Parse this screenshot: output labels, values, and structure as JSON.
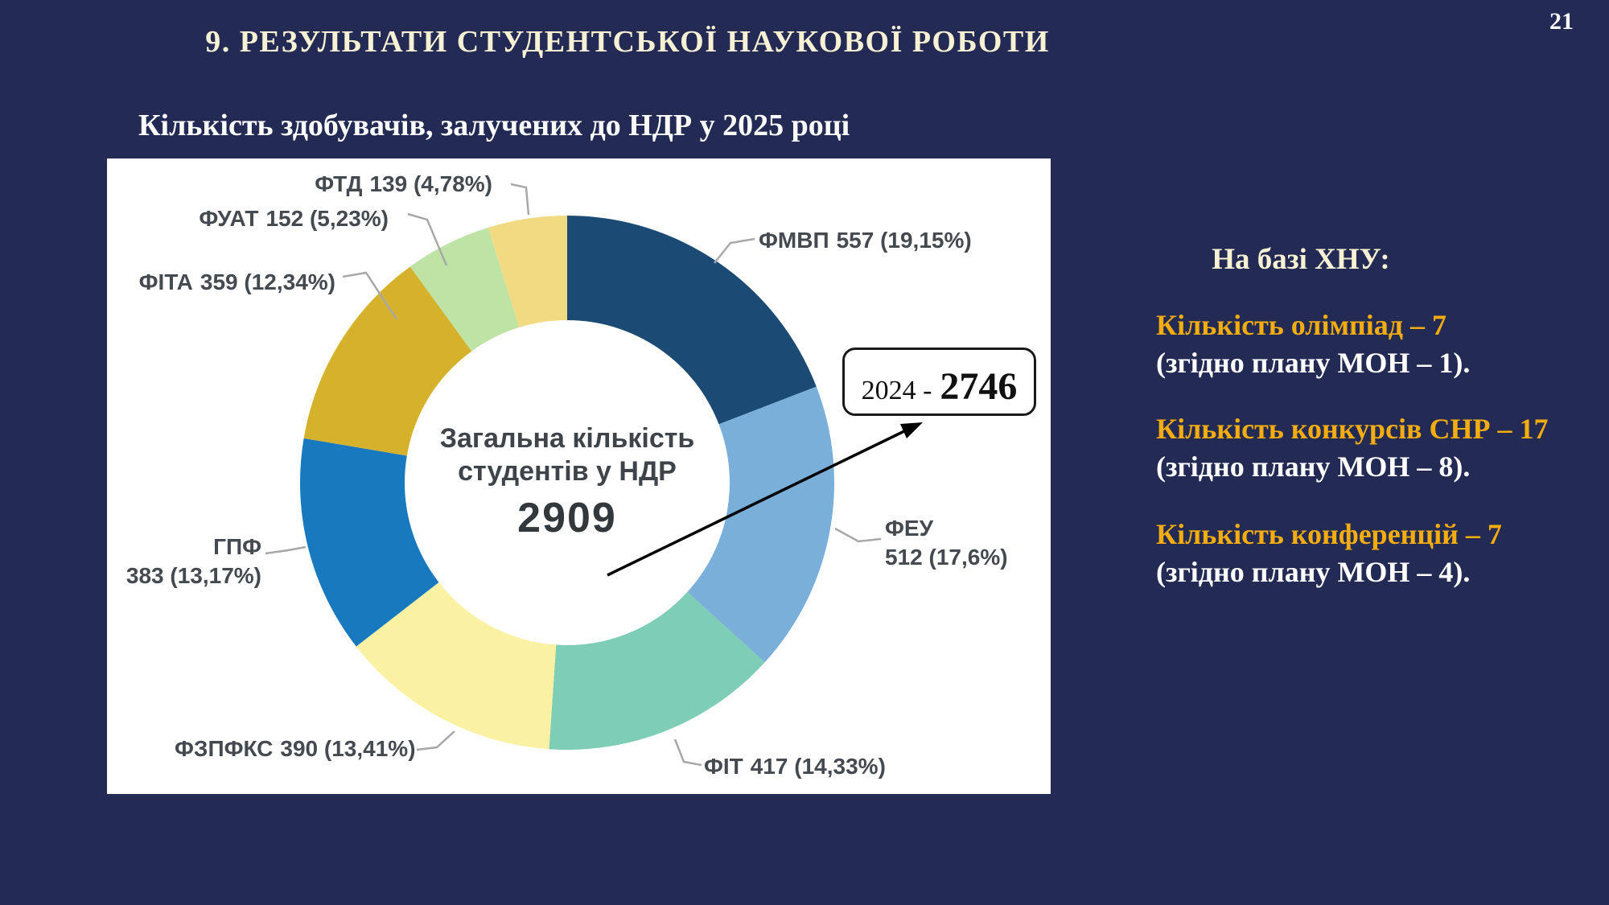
{
  "slide": {
    "page_number": "21",
    "title": "9. РЕЗУЛЬТАТИ СТУДЕНТСЬКОЇ НАУКОВОЇ РОБОТИ",
    "subtitle": "Кількість здобувачів, залучених до НДР у 2025 році"
  },
  "chart_data": {
    "type": "pie",
    "subtype": "donut",
    "title": "Кількість здобувачів, залучених до НДР у 2025 році",
    "total": 2909,
    "start_angle_deg": -90,
    "direction": "clockwise",
    "center_label": {
      "line1": "Загальна кількість",
      "line2": "студентів у НДР",
      "total": "2909"
    },
    "series": [
      {
        "name": "ФМВП",
        "value": 557,
        "percent": 19.15,
        "label_value": "557 (19,15%)",
        "color": "#1B4B74"
      },
      {
        "name": "ФЕУ",
        "value": 512,
        "percent": 17.6,
        "label_value": "512 (17,6%)",
        "color": "#79AFD9"
      },
      {
        "name": "ФІТ",
        "value": 417,
        "percent": 14.33,
        "label_value": "417 (14,33%)",
        "color": "#7ECDB6"
      },
      {
        "name": "ФЗПФКС",
        "value": 390,
        "percent": 13.41,
        "label_value": "390 (13,41%)",
        "color": "#FAF1A2"
      },
      {
        "name": "ГПФ",
        "value": 383,
        "percent": 13.17,
        "label_value": "383 (13,17%)",
        "color": "#1879BF"
      },
      {
        "name": "ФІТА",
        "value": 359,
        "percent": 12.34,
        "label_value": "359 (12,34%)",
        "color": "#D6B22C"
      },
      {
        "name": "ФУАТ",
        "value": 152,
        "percent": 5.23,
        "label_value": "152 (5,23%)",
        "color": "#BDE3A5"
      },
      {
        "name": "ФТД",
        "value": 139,
        "percent": 4.78,
        "label_value": "139 (4,78%)",
        "color": "#F2DA82"
      }
    ],
    "callout": {
      "prefix": "2024 -",
      "value": "2746"
    }
  },
  "right_panel": {
    "heading": "На базі ХНУ:",
    "items": [
      {
        "highlight": "Кількість олімпіад – 7",
        "detail": "(згідно плану МОН – 1)."
      },
      {
        "highlight": "Кількість конкурсів СНР – 17",
        "detail": "(згідно плану МОН – 8)."
      },
      {
        "highlight": "Кількість конференцій – 7",
        "detail": "(згідно плану МОН – 4)."
      }
    ]
  },
  "colors": {
    "background": "#232A54",
    "panel": "#FFFFFF",
    "title_text": "#F8F1D4",
    "body_text": "#FFFFFF",
    "accent_gold": "#F5AD0D",
    "chart_label": "#454A50",
    "leader_line": "#A8A8A8",
    "arrow": "#000000"
  }
}
